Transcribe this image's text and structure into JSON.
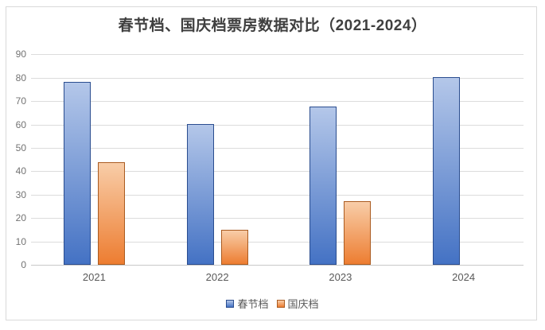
{
  "chart_data": {
    "type": "bar",
    "title": "春节档、国庆档票房数据对比（2021-2024）",
    "categories": [
      "2021",
      "2022",
      "2023",
      "2024"
    ],
    "series": [
      {
        "name": "春节档",
        "values": [
          78.22,
          60.35,
          67.58,
          80.16
        ],
        "color_top": "#b4c7e9",
        "color_bottom": "#4472c4",
        "border_color": "#2a4d8f"
      },
      {
        "name": "国庆档",
        "values": [
          43.85,
          14.96,
          27.34,
          null
        ],
        "color_top": "#f8cda8",
        "color_bottom": "#ed7d31",
        "border_color": "#aa5b20"
      }
    ],
    "xlabel": "",
    "ylabel": "",
    "ylim": [
      0,
      90
    ],
    "ytick_step": 10,
    "grid": true,
    "legend_position": "bottom"
  },
  "axes": {
    "y_ticks": [
      "0",
      "10",
      "20",
      "30",
      "40",
      "50",
      "60",
      "70",
      "80",
      "90"
    ],
    "x_ticks": [
      "2021",
      "2022",
      "2023",
      "2024"
    ]
  },
  "colors": {
    "background": "#ffffff",
    "frame_border": "#d9d9d9",
    "gridline": "#dcdcdc",
    "axis_line": "#c8c8c8",
    "title_text": "#3f3f3f",
    "y_tick_text": "#737373",
    "x_tick_text": "#595959",
    "legend_text": "#595959",
    "series_blue": "#4472c4",
    "series_orange": "#ed7d31"
  }
}
